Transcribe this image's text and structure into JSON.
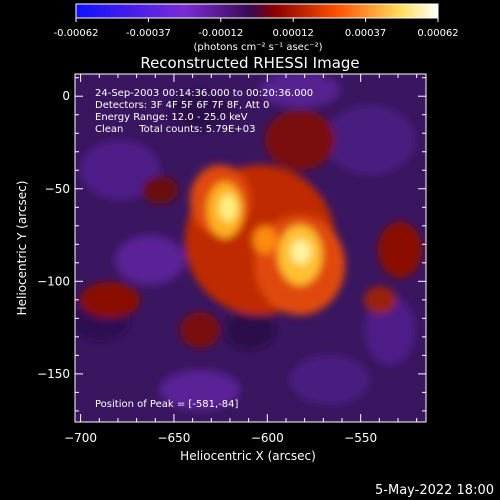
{
  "colorbar": {
    "ticks": [
      "-0.00062",
      "-0.00037",
      "-0.00012",
      "0.00012",
      "0.00037",
      "0.00062"
    ],
    "units_label": "(photons cm⁻² s⁻¹ asec⁻²)",
    "colors": [
      "#1010ff",
      "#7a2bd6",
      "#3a0a52",
      "#8a0000",
      "#ff5000",
      "#ffe060",
      "#ffffff"
    ]
  },
  "title": "Reconstructed RHESSI Image",
  "info": {
    "line1": "24-Sep-2003 00:14:36.000 to 00:20:36.000",
    "line2": "Detectors: 3F 4F 5F 6F 7F 8F, Att 0",
    "line3": "Energy Range: 12.0 - 25.0 keV",
    "line4": "Clean     Total counts: 5.79E+03"
  },
  "peak_text": "Position of Peak = [-581,-84]",
  "x_axis": {
    "label": "Heliocentric X (arcsec)",
    "ticks": [
      {
        "value": -700,
        "label": "−700"
      },
      {
        "value": -650,
        "label": "−650"
      },
      {
        "value": -600,
        "label": "−600"
      },
      {
        "value": -550,
        "label": "−550"
      }
    ],
    "range": [
      -703,
      -515
    ]
  },
  "y_axis": {
    "label": "Heliocentric Y (arcsec)",
    "ticks": [
      {
        "value": 0,
        "label": "0"
      },
      {
        "value": -50,
        "label": "−50"
      },
      {
        "value": -100,
        "label": "−100"
      },
      {
        "value": -150,
        "label": "−150"
      }
    ],
    "range": [
      -176,
      12
    ]
  },
  "date_stamp": "5-May-2022 18:00"
}
